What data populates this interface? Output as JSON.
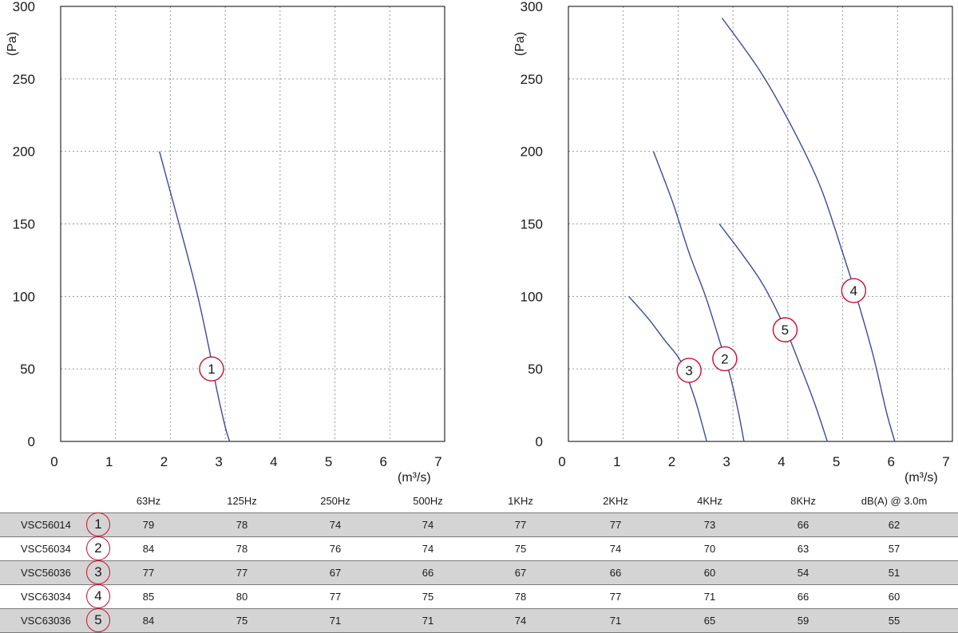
{
  "chart_data": [
    {
      "type": "line",
      "xlabel_unit": "(m³/s)",
      "ylabel": "(Pa)",
      "xlim": [
        0,
        7
      ],
      "ylim": [
        0,
        300
      ],
      "x_ticks": [
        "0",
        "1",
        "2",
        "3",
        "4",
        "5",
        "6",
        "7"
      ],
      "y_ticks": [
        "0",
        "50",
        "100",
        "150",
        "200",
        "250",
        "300"
      ],
      "grid": true,
      "series": [
        {
          "label": "1",
          "label_at": [
            2.75,
            50
          ],
          "points": [
            [
              1.8,
              200
            ],
            [
              2.05,
              165
            ],
            [
              2.3,
              130
            ],
            [
              2.5,
              100
            ],
            [
              2.7,
              65
            ],
            [
              2.85,
              35
            ],
            [
              3.0,
              10
            ],
            [
              3.08,
              0
            ]
          ]
        }
      ]
    },
    {
      "type": "line",
      "xlabel_unit": "(m³/s)",
      "ylabel": "(Pa)",
      "xlim": [
        0,
        7
      ],
      "ylim": [
        0,
        300
      ],
      "x_ticks": [
        "0",
        "1",
        "2",
        "3",
        "4",
        "5",
        "6",
        "7"
      ],
      "y_ticks": [
        "0",
        "50",
        "100",
        "150",
        "200",
        "250",
        "300"
      ],
      "grid": true,
      "series": [
        {
          "label": "3",
          "label_at": [
            2.2,
            49
          ],
          "points": [
            [
              1.1,
              100
            ],
            [
              1.45,
              85
            ],
            [
              1.75,
              70
            ],
            [
              2.05,
              55
            ],
            [
              2.3,
              30
            ],
            [
              2.45,
              10
            ],
            [
              2.52,
              0
            ]
          ]
        },
        {
          "label": "2",
          "label_at": [
            2.85,
            57
          ],
          "points": [
            [
              1.55,
              200
            ],
            [
              1.9,
              165
            ],
            [
              2.2,
              130
            ],
            [
              2.5,
              100
            ],
            [
              2.75,
              70
            ],
            [
              2.95,
              45
            ],
            [
              3.1,
              20
            ],
            [
              3.2,
              0
            ]
          ]
        },
        {
          "label": "5",
          "label_at": [
            3.95,
            77
          ],
          "points": [
            [
              2.75,
              150
            ],
            [
              3.15,
              130
            ],
            [
              3.55,
              108
            ],
            [
              3.95,
              78
            ],
            [
              4.25,
              50
            ],
            [
              4.5,
              25
            ],
            [
              4.72,
              0
            ]
          ]
        },
        {
          "label": "4",
          "label_at": [
            5.2,
            104
          ],
          "points": [
            [
              2.8,
              292
            ],
            [
              3.5,
              255
            ],
            [
              4.1,
              215
            ],
            [
              4.6,
              175
            ],
            [
              5.0,
              130
            ],
            [
              5.25,
              100
            ],
            [
              5.55,
              60
            ],
            [
              5.8,
              20
            ],
            [
              5.95,
              0
            ]
          ]
        }
      ]
    }
  ],
  "noise_table": {
    "headers": [
      "63Hz",
      "125Hz",
      "250Hz",
      "500Hz",
      "1KHz",
      "2KHz",
      "4KHz",
      "8KHz",
      "dB(A) @ 3.0m"
    ],
    "rows": [
      {
        "model": "VSC56014",
        "curve": "1",
        "values": [
          "79",
          "78",
          "74",
          "74",
          "77",
          "77",
          "73",
          "66",
          "62"
        ]
      },
      {
        "model": "VSC56034",
        "curve": "2",
        "values": [
          "84",
          "78",
          "76",
          "74",
          "75",
          "74",
          "70",
          "63",
          "57"
        ]
      },
      {
        "model": "VSC56036",
        "curve": "3",
        "values": [
          "77",
          "77",
          "67",
          "66",
          "67",
          "66",
          "60",
          "54",
          "51"
        ]
      },
      {
        "model": "VSC63034",
        "curve": "4",
        "values": [
          "85",
          "80",
          "77",
          "75",
          "78",
          "77",
          "71",
          "66",
          "60"
        ]
      },
      {
        "model": "VSC63036",
        "curve": "5",
        "values": [
          "84",
          "75",
          "71",
          "71",
          "74",
          "71",
          "65",
          "59",
          "55"
        ]
      }
    ]
  },
  "colors": {
    "curve": "#3b4a9c",
    "marker": "#c8102e",
    "shade": "#d4d4d4"
  }
}
